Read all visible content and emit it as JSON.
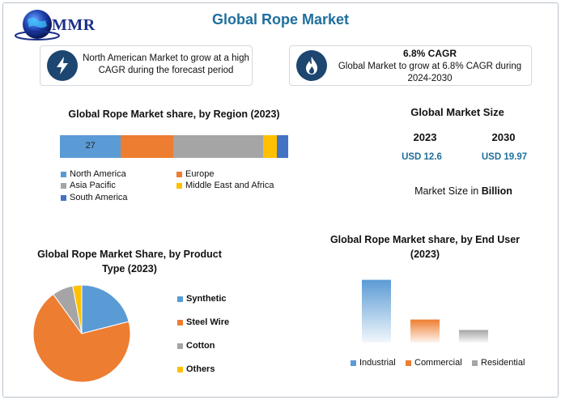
{
  "brand": {
    "name": "MMR"
  },
  "title": "Global Rope Market",
  "banner_left": {
    "icon": "lightning-icon",
    "text": "North American Market to grow at a high CAGR during the forecast period"
  },
  "banner_right": {
    "icon": "flame-icon",
    "headline": "6.8% CAGR",
    "text": "Global Market to grow at 6.8% CAGR during 2024-2030"
  },
  "market_size": {
    "title": "Global Market Size",
    "year_start": "2023",
    "year_end": "2030",
    "value_start": "USD 12.6",
    "value_end": "USD 19.97",
    "note_prefix": "Market Size in ",
    "note_unit": "Billion"
  },
  "colors": {
    "accent": "#1f6f9c",
    "blue": "#5b9bd5",
    "orange": "#ed7d31",
    "gray": "#a5a5a5",
    "yellow": "#ffc000",
    "darkblue": "#4472c4"
  },
  "chart_data": [
    {
      "type": "bar",
      "orientation": "horizontal-stacked",
      "title": "Global Rope Market share, by Region (2023)",
      "series": [
        {
          "name": "North America",
          "value": 27,
          "color": "#5b9bd5",
          "show_label": true
        },
        {
          "name": "Europe",
          "value": 23,
          "color": "#ed7d31"
        },
        {
          "name": "Asia Pacific",
          "value": 40,
          "color": "#a5a5a5"
        },
        {
          "name": "Middle East and Africa",
          "value": 6,
          "color": "#ffc000"
        },
        {
          "name": "South America",
          "value": 5,
          "color": "#4472c4"
        }
      ]
    },
    {
      "type": "pie",
      "title": "Global Rope Market Share, by Product Type (2023)",
      "slices": [
        {
          "name": "Synthetic",
          "value": 21,
          "color": "#5b9bd5"
        },
        {
          "name": "Steel Wire",
          "value": 69,
          "color": "#ed7d31"
        },
        {
          "name": "Cotton",
          "value": 7,
          "color": "#a5a5a5"
        },
        {
          "name": "Others",
          "value": 3,
          "color": "#ffc000"
        }
      ],
      "legend": "right"
    },
    {
      "type": "bar",
      "title": "Global Rope Market share, by End User (2023)",
      "categories": [
        "Industrial",
        "Commercial",
        "Residential"
      ],
      "values": [
        60,
        22,
        12
      ],
      "colors": [
        "#5b9bd5",
        "#ed7d31",
        "#a5a5a5"
      ],
      "ylim": [
        0,
        62
      ],
      "legend": "bottom",
      "grid": false
    }
  ]
}
